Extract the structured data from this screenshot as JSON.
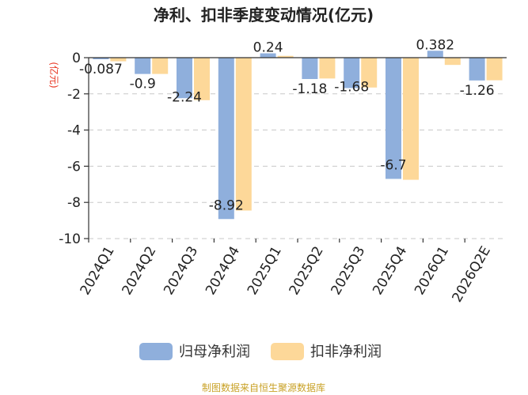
{
  "chart_data": {
    "type": "bar",
    "title": "净利、扣非季度变动情况(亿元)",
    "unit_label": "(亿元)",
    "categories": [
      "2024Q1",
      "2024Q2",
      "2024Q3",
      "2024Q4",
      "2025Q1",
      "2025Q2",
      "2025Q3",
      "2025Q4",
      "2026Q1",
      "2026Q2E"
    ],
    "series": [
      {
        "name": "归母净利润",
        "color": "#8fafdc",
        "values": [
          -0.087,
          -0.9,
          -2.24,
          -8.92,
          0.24,
          -1.18,
          -1.68,
          -6.7,
          0.382,
          -1.26
        ],
        "labels": [
          "-0.087",
          "-0.9",
          "-2.24",
          "-8.92",
          "0.24",
          "-1.18",
          "-1.68",
          "-6.7",
          "0.382",
          "-1.26"
        ]
      },
      {
        "name": "扣非净利润",
        "color": "#fdd899",
        "values": [
          -0.2,
          -0.9,
          -2.35,
          -8.45,
          0.1,
          -1.15,
          -1.65,
          -6.75,
          -0.4,
          -1.25
        ]
      }
    ],
    "yticks": [
      0,
      -2,
      -4,
      -6,
      -8,
      -10
    ],
    "ylim": [
      -10,
      0
    ],
    "grid": true,
    "legend_position": "bottom"
  },
  "source": "制图数据来自恒生聚源数据库"
}
